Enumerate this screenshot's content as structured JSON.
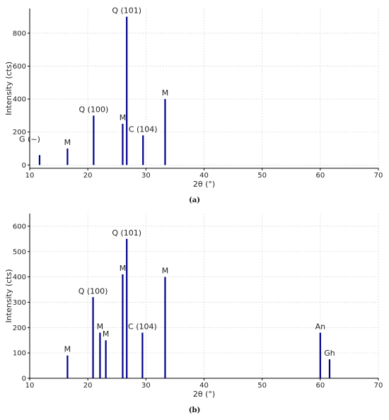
{
  "figure": {
    "caption_a": "(a)",
    "caption_b": "(b)"
  },
  "chart_data": [
    {
      "type": "bar",
      "panel": "a",
      "xlabel": "2θ (°)",
      "ylabel": "Intensity (cts)",
      "xlim": [
        10,
        70
      ],
      "ylim": [
        -20,
        950
      ],
      "xticks": [
        10,
        20,
        30,
        40,
        50,
        60,
        70
      ],
      "yticks": [
        0,
        200,
        400,
        600,
        800
      ],
      "grid": true,
      "bar_color": "#00008b",
      "peaks": [
        {
          "x": 11.7,
          "y": 60,
          "label": "G (~)"
        },
        {
          "x": 16.5,
          "y": 100,
          "label": "M"
        },
        {
          "x": 21.0,
          "y": 300,
          "label": "Q (100)"
        },
        {
          "x": 26.0,
          "y": 250,
          "label": "M"
        },
        {
          "x": 26.7,
          "y": 900,
          "label": "Q (101)"
        },
        {
          "x": 29.5,
          "y": 180,
          "label": "C (104)"
        },
        {
          "x": 33.3,
          "y": 400,
          "label": "M"
        }
      ]
    },
    {
      "type": "bar",
      "panel": "b",
      "xlabel": "2θ (°)",
      "ylabel": "Intensity (cts)",
      "xlim": [
        10,
        70
      ],
      "ylim": [
        0,
        650
      ],
      "xticks": [
        10,
        20,
        30,
        40,
        50,
        60,
        70
      ],
      "yticks": [
        0,
        100,
        200,
        300,
        400,
        500,
        600
      ],
      "grid": true,
      "bar_color": "#00008b",
      "peaks": [
        {
          "x": 16.5,
          "y": 90,
          "label": "M"
        },
        {
          "x": 20.9,
          "y": 320,
          "label": "Q (100)"
        },
        {
          "x": 22.1,
          "y": 180,
          "label": "M"
        },
        {
          "x": 23.1,
          "y": 150,
          "label": "M"
        },
        {
          "x": 26.0,
          "y": 410,
          "label": "M"
        },
        {
          "x": 26.7,
          "y": 550,
          "label": "Q (101)"
        },
        {
          "x": 29.4,
          "y": 180,
          "label": "C (104)"
        },
        {
          "x": 33.3,
          "y": 400,
          "label": "M"
        },
        {
          "x": 60.0,
          "y": 180,
          "label": "An"
        },
        {
          "x": 61.6,
          "y": 75,
          "label": "Gh"
        }
      ]
    }
  ]
}
